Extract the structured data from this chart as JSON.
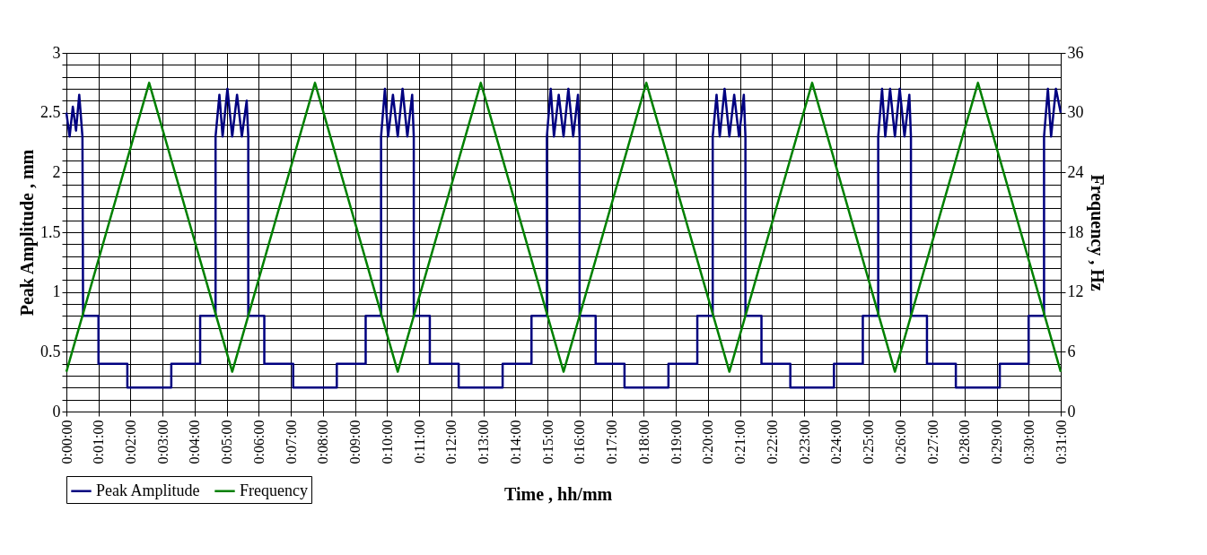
{
  "chart_data": {
    "type": "line",
    "xlabel": "Time , hh/mm",
    "ylabel": "Peak Amplitude , mm",
    "y2label": "Frequency , Hz",
    "xlim": [
      0,
      31
    ],
    "xticks": [
      {
        "value": 0,
        "label": "0:00:00"
      },
      {
        "value": 1,
        "label": "0:01:00"
      },
      {
        "value": 2,
        "label": "0:02:00"
      },
      {
        "value": 3,
        "label": "0:03:00"
      },
      {
        "value": 4,
        "label": "0:04:00"
      },
      {
        "value": 5,
        "label": "0:05:00"
      },
      {
        "value": 6,
        "label": "0:06:00"
      },
      {
        "value": 7,
        "label": "0:07:00"
      },
      {
        "value": 8,
        "label": "0:08:00"
      },
      {
        "value": 9,
        "label": "0:09:00"
      },
      {
        "value": 10,
        "label": "0:10:00"
      },
      {
        "value": 11,
        "label": "0:11:00"
      },
      {
        "value": 12,
        "label": "0:12:00"
      },
      {
        "value": 13,
        "label": "0:13:00"
      },
      {
        "value": 14,
        "label": "0:14:00"
      },
      {
        "value": 15,
        "label": "0:15:00"
      },
      {
        "value": 16,
        "label": "0:16:00"
      },
      {
        "value": 17,
        "label": "0:17:00"
      },
      {
        "value": 18,
        "label": "0:18:00"
      },
      {
        "value": 19,
        "label": "0:19:00"
      },
      {
        "value": 20,
        "label": "0:20:00"
      },
      {
        "value": 21,
        "label": "0:21:00"
      },
      {
        "value": 22,
        "label": "0:22:00"
      },
      {
        "value": 23,
        "label": "0:23:00"
      },
      {
        "value": 24,
        "label": "0:24:00"
      },
      {
        "value": 25,
        "label": "0:25:00"
      },
      {
        "value": 26,
        "label": "0:26:00"
      },
      {
        "value": 27,
        "label": "0:27:00"
      },
      {
        "value": 28,
        "label": "0:28:00"
      },
      {
        "value": 29,
        "label": "0:29:00"
      },
      {
        "value": 30,
        "label": "0:30:00"
      },
      {
        "value": 31,
        "label": "0:31:00"
      }
    ],
    "ylim": [
      0,
      3
    ],
    "yticks": [
      0,
      {
        "value": 0.1,
        "label": null
      },
      {
        "value": 0.2,
        "label": null
      },
      {
        "value": 0.3,
        "label": null
      },
      {
        "value": 0.4,
        "label": null
      },
      0.5,
      {
        "value": 0.6,
        "label": null
      },
      {
        "value": 0.7,
        "label": null
      },
      {
        "value": 0.8,
        "label": null
      },
      {
        "value": 0.9,
        "label": null
      },
      1,
      {
        "value": 1.1,
        "label": null
      },
      {
        "value": 1.2,
        "label": null
      },
      {
        "value": 1.3,
        "label": null
      },
      {
        "value": 1.4,
        "label": null
      },
      1.5,
      {
        "value": 1.6,
        "label": null
      },
      {
        "value": 1.7,
        "label": null
      },
      {
        "value": 1.8,
        "label": null
      },
      {
        "value": 1.9,
        "label": null
      },
      2,
      {
        "value": 2.1,
        "label": null
      },
      {
        "value": 2.2,
        "label": null
      },
      {
        "value": 2.3,
        "label": null
      },
      {
        "value": 2.4,
        "label": null
      },
      2.5,
      {
        "value": 2.6,
        "label": null
      },
      {
        "value": 2.7,
        "label": null
      },
      {
        "value": 2.8,
        "label": null
      },
      {
        "value": 2.9,
        "label": null
      },
      3
    ],
    "y2lim": [
      0,
      36
    ],
    "y2ticks": [
      0,
      6,
      12,
      18,
      24,
      30,
      36
    ],
    "grid": true,
    "legend": "bottom left",
    "marker": "none",
    "line_style": "solid",
    "series": [
      {
        "name": "Peak Amplitude",
        "color": "#000080",
        "x": [
          0,
          0.1,
          0.2,
          0.3,
          0.4,
          0.5,
          0.52,
          1.0,
          1.0,
          1.9,
          1.9,
          3.27,
          3.27,
          4.17,
          4.17,
          4.65,
          4.65,
          4.77,
          4.87,
          5.02,
          5.17,
          5.32,
          5.47,
          5.62,
          5.67,
          5.67,
          6.17,
          6.17,
          7.07,
          7.07,
          8.43,
          8.43,
          9.33,
          9.33,
          9.81,
          9.81,
          9.93,
          10.03,
          10.18,
          10.33,
          10.48,
          10.63,
          10.78,
          10.83,
          10.83,
          11.33,
          11.33,
          12.23,
          12.23,
          13.6,
          13.6,
          14.5,
          14.5,
          14.98,
          14.98,
          15.1,
          15.2,
          15.35,
          15.5,
          15.65,
          15.8,
          15.95,
          16.0,
          16.0,
          16.5,
          16.5,
          17.4,
          17.4,
          18.77,
          18.77,
          19.67,
          19.67,
          20.15,
          20.15,
          20.27,
          20.37,
          20.52,
          20.67,
          20.82,
          20.97,
          21.12,
          21.17,
          21.17,
          21.67,
          21.67,
          22.57,
          22.57,
          23.93,
          23.93,
          24.83,
          24.83,
          25.31,
          25.31,
          25.43,
          25.53,
          25.68,
          25.83,
          25.98,
          26.13,
          26.28,
          26.33,
          26.33,
          26.83,
          26.83,
          27.73,
          27.73,
          29.1,
          29.1,
          30.0,
          30.0,
          30.48,
          30.48,
          30.6,
          30.7,
          30.85,
          31.0
        ],
        "values": [
          2.5,
          2.3,
          2.55,
          2.35,
          2.65,
          2.3,
          0.8,
          0.8,
          0.4,
          0.4,
          0.2,
          0.2,
          0.4,
          0.4,
          0.8,
          0.8,
          2.3,
          2.65,
          2.3,
          2.7,
          2.3,
          2.65,
          2.3,
          2.6,
          2.3,
          0.8,
          0.8,
          0.4,
          0.4,
          0.2,
          0.2,
          0.4,
          0.4,
          0.8,
          0.8,
          2.3,
          2.7,
          2.3,
          2.65,
          2.3,
          2.7,
          2.3,
          2.65,
          2.3,
          0.8,
          0.8,
          0.4,
          0.4,
          0.2,
          0.2,
          0.4,
          0.4,
          0.8,
          0.8,
          2.3,
          2.7,
          2.3,
          2.65,
          2.3,
          2.7,
          2.3,
          2.65,
          2.3,
          0.8,
          0.8,
          0.4,
          0.4,
          0.2,
          0.2,
          0.4,
          0.4,
          0.8,
          0.8,
          2.3,
          2.65,
          2.3,
          2.7,
          2.3,
          2.65,
          2.3,
          2.65,
          2.3,
          0.8,
          0.8,
          0.4,
          0.4,
          0.2,
          0.2,
          0.4,
          0.4,
          0.8,
          0.8,
          2.3,
          2.7,
          2.3,
          2.7,
          2.3,
          2.7,
          2.3,
          2.65,
          2.3,
          0.8,
          0.8,
          0.4,
          0.4,
          0.2,
          0.2,
          0.4,
          0.4,
          0.8,
          0.8,
          2.3,
          2.7,
          2.3,
          2.7,
          2.5
        ]
      },
      {
        "name": "Frequency",
        "color": "#008000",
        "axis": "y2",
        "x": [
          0,
          2.58,
          5.17,
          7.75,
          10.33,
          12.92,
          15.5,
          18.08,
          20.67,
          23.25,
          25.83,
          28.42,
          31
        ],
        "values": [
          4,
          33,
          4,
          33,
          4,
          33,
          4,
          33,
          4,
          33,
          4,
          33,
          4
        ]
      }
    ]
  }
}
